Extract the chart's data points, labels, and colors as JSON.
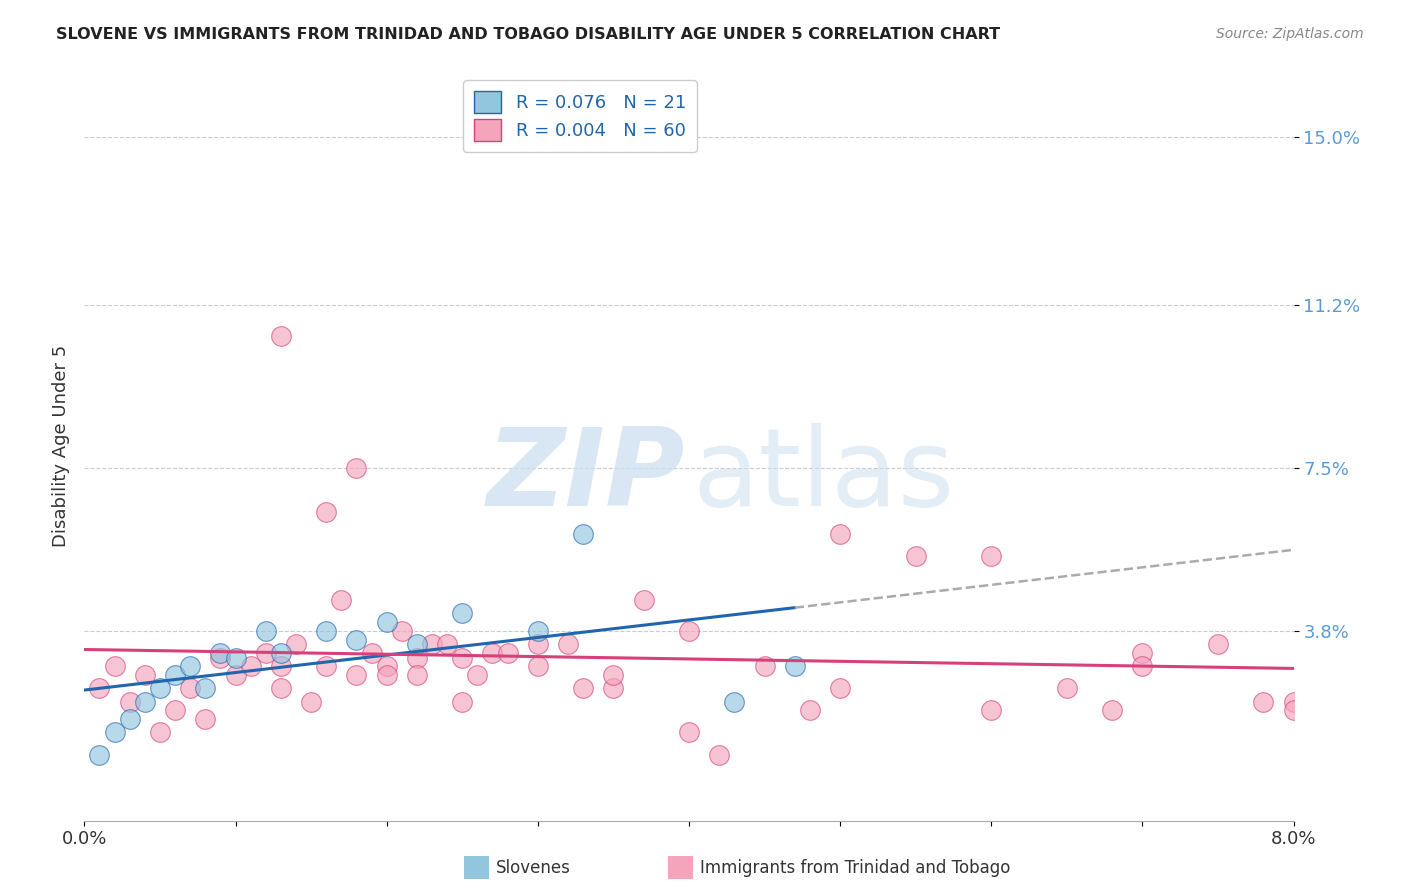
{
  "title": "SLOVENE VS IMMIGRANTS FROM TRINIDAD AND TOBAGO DISABILITY AGE UNDER 5 CORRELATION CHART",
  "source": "Source: ZipAtlas.com",
  "ylabel": "Disability Age Under 5",
  "legend_label1": "Slovenes",
  "legend_label2": "Immigrants from Trinidad and Tobago",
  "R1": 0.076,
  "N1": 21,
  "R2": 0.004,
  "N2": 60,
  "xlim": [
    0.0,
    0.08
  ],
  "ylim": [
    -0.005,
    0.165
  ],
  "xticks": [
    0.0,
    0.01,
    0.02,
    0.03,
    0.04,
    0.05,
    0.06,
    0.07,
    0.08
  ],
  "xtick_labels": [
    "0.0%",
    "",
    "",
    "",
    "",
    "",
    "",
    "",
    "8.0%"
  ],
  "ytick_positions": [
    0.038,
    0.075,
    0.112,
    0.15
  ],
  "ytick_labels": [
    "3.8%",
    "7.5%",
    "11.2%",
    "15.0%"
  ],
  "color_slovene": "#92c5de",
  "color_immigrants": "#f4a5bc",
  "color_line_slovene": "#2166ac",
  "color_line_immigrants": "#d6417b",
  "background_color": "#ffffff",
  "grid_color": "#cccccc",
  "slovene_x": [
    0.001,
    0.002,
    0.003,
    0.004,
    0.005,
    0.006,
    0.007,
    0.008,
    0.009,
    0.01,
    0.012,
    0.013,
    0.016,
    0.018,
    0.02,
    0.022,
    0.025,
    0.03,
    0.033,
    0.043,
    0.047
  ],
  "slovene_y": [
    0.01,
    0.015,
    0.018,
    0.022,
    0.025,
    0.028,
    0.03,
    0.025,
    0.033,
    0.032,
    0.038,
    0.033,
    0.038,
    0.036,
    0.04,
    0.035,
    0.042,
    0.038,
    0.06,
    0.022,
    0.03
  ],
  "immig_x": [
    0.001,
    0.002,
    0.003,
    0.004,
    0.005,
    0.006,
    0.007,
    0.008,
    0.009,
    0.01,
    0.011,
    0.012,
    0.013,
    0.014,
    0.015,
    0.013,
    0.016,
    0.017,
    0.018,
    0.019,
    0.02,
    0.021,
    0.022,
    0.023,
    0.024,
    0.025,
    0.026,
    0.027,
    0.028,
    0.03,
    0.032,
    0.033,
    0.035,
    0.037,
    0.04,
    0.042,
    0.045,
    0.048,
    0.05,
    0.055,
    0.06,
    0.065,
    0.068,
    0.07,
    0.075,
    0.078,
    0.08,
    0.013,
    0.016,
    0.018,
    0.02,
    0.022,
    0.025,
    0.03,
    0.035,
    0.04,
    0.05,
    0.06,
    0.07,
    0.08
  ],
  "immig_y": [
    0.025,
    0.03,
    0.022,
    0.028,
    0.015,
    0.02,
    0.025,
    0.018,
    0.032,
    0.028,
    0.03,
    0.033,
    0.025,
    0.035,
    0.022,
    0.03,
    0.03,
    0.045,
    0.028,
    0.033,
    0.03,
    0.038,
    0.032,
    0.035,
    0.035,
    0.022,
    0.028,
    0.033,
    0.033,
    0.03,
    0.035,
    0.025,
    0.025,
    0.045,
    0.038,
    0.01,
    0.03,
    0.02,
    0.06,
    0.055,
    0.055,
    0.025,
    0.02,
    0.033,
    0.035,
    0.022,
    0.022,
    0.105,
    0.065,
    0.075,
    0.028,
    0.028,
    0.032,
    0.035,
    0.028,
    0.015,
    0.025,
    0.02,
    0.03,
    0.02
  ]
}
